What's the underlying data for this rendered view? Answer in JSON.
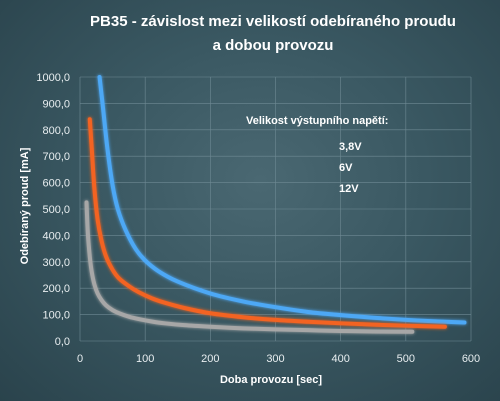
{
  "chart_data": {
    "type": "line",
    "title": [
      "PB35 - závislost mezi velikostí odebíraného proudu",
      "a dobou provozu"
    ],
    "xlabel": "Doba provozu [sec]",
    "ylabel": "Odebíraný proud [mA]",
    "xlim": [
      0,
      600
    ],
    "ylim": [
      0,
      1000
    ],
    "x_ticks": [
      "0",
      "100",
      "200",
      "300",
      "400",
      "500",
      "600"
    ],
    "y_ticks": [
      "0,0",
      "100,0",
      "200,0",
      "300,0",
      "400,0",
      "500,0",
      "600,0",
      "700,0",
      "800,0",
      "900,0",
      "1000,0"
    ],
    "grid": true,
    "legend_title": "Velikost výstupního  napětí:",
    "legend_position": "right",
    "series": [
      {
        "name": "3,8V",
        "color": "#4ea8f5",
        "x": [
          30,
          35,
          42,
          50,
          58,
          70,
          85,
          100,
          120,
          150,
          200,
          250,
          300,
          350,
          400,
          450,
          500,
          550,
          590
        ],
        "y": [
          1000,
          890,
          730,
          590,
          500,
          420,
          350,
          305,
          265,
          225,
          180,
          150,
          128,
          110,
          98,
          88,
          80,
          74,
          70
        ]
      },
      {
        "name": "6V",
        "color": "#f36420",
        "x": [
          15,
          18,
          22,
          27,
          33,
          40,
          50,
          60,
          75,
          90,
          110,
          130,
          160,
          200,
          250,
          300,
          350,
          400,
          450,
          500,
          560
        ],
        "y": [
          840,
          730,
          580,
          460,
          380,
          320,
          270,
          237,
          208,
          185,
          162,
          145,
          125,
          105,
          90,
          80,
          73,
          67,
          62,
          58,
          54
        ]
      },
      {
        "name": "12V",
        "color": "#a7a7a7",
        "x": [
          10,
          12,
          15,
          18,
          22,
          27,
          33,
          40,
          50,
          60,
          75,
          90,
          110,
          130,
          160,
          200,
          250,
          300,
          350,
          400,
          450,
          510
        ],
        "y": [
          525,
          410,
          320,
          262,
          215,
          180,
          155,
          135,
          117,
          105,
          92,
          83,
          74,
          67,
          60,
          54,
          48,
          44,
          41,
          38,
          36,
          35
        ]
      }
    ]
  }
}
